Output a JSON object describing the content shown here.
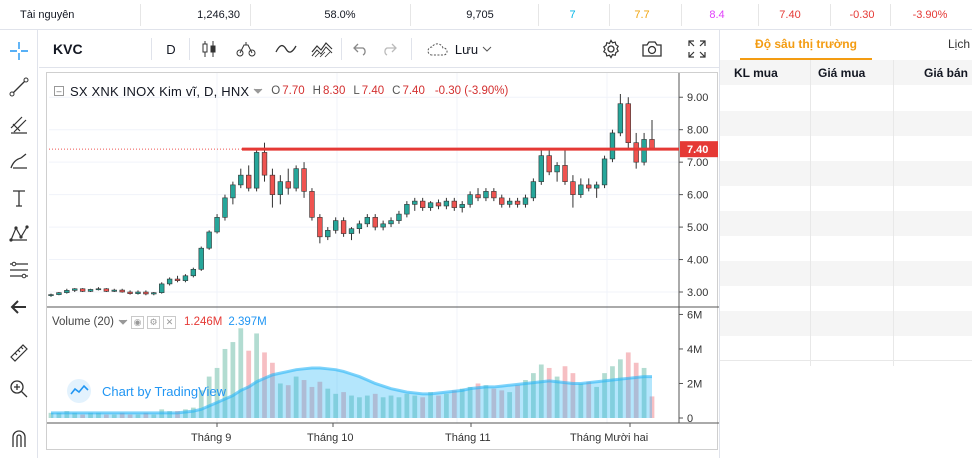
{
  "ticker": {
    "name": "Tài nguyên",
    "value": "1,246,30",
    "percent": "58.0%",
    "volume": "9,705",
    "v1": "7",
    "v2": "7.7",
    "v3": "8.4",
    "v4": "7.40",
    "v5": "-0.30",
    "v6": "-3.90%",
    "colors": {
      "v1": "#00b4e6",
      "v2": "#f0a30a",
      "v3": "#e040fb",
      "down": "#e53935"
    }
  },
  "toolbar": {
    "symbol": "KVC",
    "interval": "D",
    "save_label": "Lưu"
  },
  "legend": {
    "symbol": "SX XNK INOX Kim vĩ, D, HNX",
    "open_label": "O",
    "open": "7.70",
    "high_label": "H",
    "high": "8.30",
    "low_label": "L",
    "low": "7.40",
    "close_label": "C",
    "close": "7.40",
    "change": "-0.30 (-3.90%)"
  },
  "volume_legend": {
    "label": "Volume (20)",
    "value": "1.246M",
    "ma": "2.397M"
  },
  "watermark": "Chart by TradingView",
  "price_tag": "7.40",
  "right_panel": {
    "tab_active": "Độ sâu thị trường",
    "tab_other": "Lịch",
    "col_kl_mua": "KL mua",
    "col_gia_mua": "Giá mua",
    "col_gia_ban": "Giá bán"
  },
  "chart_data": {
    "type": "candlestick",
    "x_ticks": [
      "Tháng 9",
      "Tháng 10",
      "Tháng 11",
      "Tháng Mười hai"
    ],
    "price_ticks": [
      "9.00",
      "8.00",
      "7.00",
      "6.00",
      "5.00",
      "4.00",
      "3.00"
    ],
    "price_range": [
      2.6,
      9.5
    ],
    "volume_ticks": [
      "6M",
      "4M",
      "2M",
      "0"
    ],
    "volume_range": [
      0,
      6.2
    ],
    "horizontal_line": 7.4,
    "colors": {
      "up": "#26a69a",
      "down": "#ef5350",
      "line": "#e53935",
      "vol_ma": "#29b6f6"
    },
    "candles": [
      [
        2.9,
        2.95,
        2.85,
        2.92
      ],
      [
        2.92,
        3.0,
        2.9,
        2.98
      ],
      [
        2.98,
        3.1,
        2.95,
        3.05
      ],
      [
        3.05,
        3.12,
        3.0,
        3.1
      ],
      [
        3.1,
        3.12,
        3.0,
        3.02
      ],
      [
        3.02,
        3.1,
        3.0,
        3.08
      ],
      [
        3.08,
        3.15,
        3.05,
        3.1
      ],
      [
        3.1,
        3.12,
        3.0,
        3.02
      ],
      [
        3.02,
        3.1,
        3.0,
        3.06
      ],
      [
        3.06,
        3.1,
        2.98,
        3.0
      ],
      [
        3.0,
        3.05,
        2.92,
        2.95
      ],
      [
        2.95,
        3.05,
        2.92,
        3.0
      ],
      [
        3.0,
        3.05,
        2.9,
        2.94
      ],
      [
        2.94,
        3.0,
        2.9,
        2.98
      ],
      [
        2.98,
        3.3,
        2.95,
        3.25
      ],
      [
        3.25,
        3.45,
        3.2,
        3.4
      ],
      [
        3.4,
        3.5,
        3.3,
        3.35
      ],
      [
        3.35,
        3.55,
        3.3,
        3.5
      ],
      [
        3.5,
        3.75,
        3.45,
        3.7
      ],
      [
        3.7,
        4.4,
        3.65,
        4.35
      ],
      [
        4.35,
        4.9,
        4.3,
        4.85
      ],
      [
        4.85,
        5.4,
        4.8,
        5.3
      ],
      [
        5.3,
        6.0,
        5.2,
        5.9
      ],
      [
        5.9,
        6.4,
        5.7,
        6.3
      ],
      [
        6.3,
        6.8,
        6.2,
        6.6
      ],
      [
        6.6,
        6.9,
        6.1,
        6.2
      ],
      [
        6.2,
        7.4,
        6.1,
        7.3
      ],
      [
        7.3,
        7.6,
        6.4,
        6.6
      ],
      [
        6.6,
        6.8,
        5.6,
        6.0
      ],
      [
        6.0,
        6.6,
        5.7,
        6.4
      ],
      [
        6.4,
        6.8,
        6.0,
        6.2
      ],
      [
        6.2,
        6.9,
        6.1,
        6.8
      ],
      [
        6.8,
        7.0,
        5.9,
        6.1
      ],
      [
        6.1,
        6.2,
        5.2,
        5.3
      ],
      [
        5.3,
        5.4,
        4.5,
        4.7
      ],
      [
        4.7,
        5.0,
        4.6,
        4.9
      ],
      [
        4.9,
        5.3,
        4.8,
        5.2
      ],
      [
        5.2,
        5.3,
        4.7,
        4.8
      ],
      [
        4.8,
        5.0,
        4.6,
        4.95
      ],
      [
        4.95,
        5.2,
        4.8,
        5.1
      ],
      [
        5.1,
        5.4,
        5.0,
        5.3
      ],
      [
        5.3,
        5.4,
        4.9,
        5.0
      ],
      [
        5.0,
        5.2,
        4.9,
        5.1
      ],
      [
        5.1,
        5.3,
        5.0,
        5.2
      ],
      [
        5.2,
        5.5,
        5.1,
        5.4
      ],
      [
        5.4,
        5.8,
        5.3,
        5.7
      ],
      [
        5.7,
        5.9,
        5.5,
        5.8
      ],
      [
        5.8,
        5.9,
        5.5,
        5.6
      ],
      [
        5.6,
        5.8,
        5.5,
        5.75
      ],
      [
        5.75,
        5.85,
        5.55,
        5.65
      ],
      [
        5.65,
        5.9,
        5.55,
        5.8
      ],
      [
        5.8,
        5.9,
        5.5,
        5.6
      ],
      [
        5.6,
        5.8,
        5.45,
        5.7
      ],
      [
        5.7,
        6.1,
        5.6,
        6.0
      ],
      [
        6.0,
        6.2,
        5.8,
        5.9
      ],
      [
        5.9,
        6.2,
        5.8,
        6.1
      ],
      [
        6.1,
        6.2,
        5.8,
        5.9
      ],
      [
        5.9,
        6.0,
        5.6,
        5.7
      ],
      [
        5.7,
        5.9,
        5.6,
        5.8
      ],
      [
        5.8,
        5.9,
        5.6,
        5.7
      ],
      [
        5.7,
        6.0,
        5.6,
        5.9
      ],
      [
        5.9,
        6.5,
        5.8,
        6.4
      ],
      [
        6.4,
        7.4,
        6.3,
        7.2
      ],
      [
        7.2,
        7.4,
        6.6,
        6.7
      ],
      [
        6.7,
        7.0,
        6.4,
        6.9
      ],
      [
        6.9,
        7.4,
        6.3,
        6.4
      ],
      [
        6.4,
        6.6,
        5.6,
        6.0
      ],
      [
        6.0,
        6.5,
        5.9,
        6.3
      ],
      [
        6.3,
        6.5,
        6.1,
        6.2
      ],
      [
        6.2,
        6.4,
        5.9,
        6.3
      ],
      [
        6.3,
        7.2,
        6.2,
        7.1
      ],
      [
        7.1,
        8.0,
        7.0,
        7.9
      ],
      [
        7.9,
        9.1,
        7.8,
        8.8
      ],
      [
        8.8,
        9.0,
        7.4,
        7.6
      ],
      [
        7.6,
        7.9,
        6.8,
        7.0
      ],
      [
        7.0,
        7.9,
        6.9,
        7.7
      ],
      [
        7.7,
        8.3,
        7.4,
        7.4
      ]
    ],
    "volumes": [
      0.3,
      0.3,
      0.4,
      0.3,
      0.2,
      0.3,
      0.3,
      0.2,
      0.2,
      0.3,
      0.2,
      0.2,
      0.3,
      0.2,
      0.5,
      0.4,
      0.4,
      0.5,
      0.6,
      1.6,
      2.4,
      2.9,
      4.0,
      4.4,
      5.2,
      3.9,
      4.9,
      3.8,
      3.2,
      2.0,
      1.9,
      2.4,
      2.2,
      1.8,
      2.1,
      1.7,
      1.4,
      1.5,
      1.3,
      1.2,
      1.3,
      1.4,
      1.2,
      1.3,
      1.2,
      1.4,
      1.3,
      1.2,
      1.5,
      1.3,
      1.4,
      1.6,
      1.7,
      1.8,
      2.0,
      1.9,
      1.7,
      1.6,
      1.5,
      1.9,
      2.2,
      2.6,
      3.1,
      2.9,
      2.4,
      3.0,
      2.6,
      2.0,
      2.1,
      1.8,
      2.6,
      3.0,
      3.4,
      3.8,
      3.2,
      2.9,
      1.25
    ],
    "volume_ma": [
      0.3,
      0.3,
      0.3,
      0.3,
      0.3,
      0.3,
      0.3,
      0.3,
      0.3,
      0.3,
      0.3,
      0.3,
      0.3,
      0.3,
      0.3,
      0.3,
      0.3,
      0.35,
      0.4,
      0.5,
      0.7,
      0.9,
      1.1,
      1.3,
      1.6,
      1.8,
      2.1,
      2.3,
      2.5,
      2.6,
      2.7,
      2.8,
      2.85,
      2.9,
      2.9,
      2.85,
      2.8,
      2.7,
      2.55,
      2.4,
      2.2,
      2.0,
      1.85,
      1.7,
      1.6,
      1.5,
      1.45,
      1.4,
      1.4,
      1.45,
      1.5,
      1.55,
      1.6,
      1.7,
      1.75,
      1.8,
      1.8,
      1.85,
      1.9,
      1.95,
      2.0,
      2.05,
      2.1,
      2.15,
      2.1,
      2.05,
      2.0,
      2.0,
      2.05,
      2.1,
      2.15,
      2.2,
      2.25,
      2.3,
      2.35,
      2.4,
      2.4
    ]
  }
}
